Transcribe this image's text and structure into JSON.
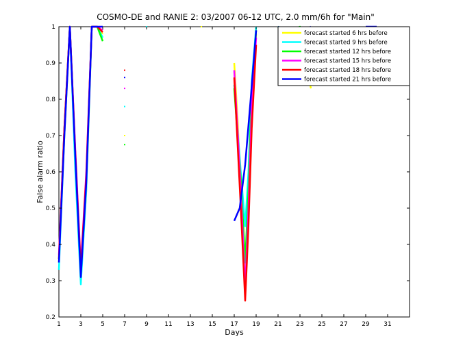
{
  "chart_data": {
    "type": "line",
    "title": "COSMO-DE and RANIE 2: 03/2007 06-12 UTC, 2.0 mm/6h for \"Main\"",
    "xlabel": "Days",
    "ylabel": "False alarm ratio",
    "xlim": [
      1,
      33
    ],
    "ylim": [
      0.2,
      1.0
    ],
    "x_ticks": [
      1,
      3,
      5,
      7,
      9,
      11,
      13,
      15,
      17,
      19,
      21,
      23,
      25,
      27,
      29,
      31
    ],
    "x_tick_labels": [
      "1",
      "3",
      "5",
      "7",
      "9",
      "11",
      "13",
      "15",
      "17",
      "19",
      "21",
      "23",
      "25",
      "27",
      "29",
      "31"
    ],
    "y_ticks": [
      0.2,
      0.3,
      0.4,
      0.5,
      0.6,
      0.7,
      0.8,
      0.9,
      1.0
    ],
    "y_tick_labels": [
      "0.2",
      "0.3",
      "0.4",
      "0.5",
      "0.6",
      "0.7",
      "0.8",
      "0.9",
      "1"
    ],
    "grid": false,
    "legend_position": "top-right",
    "series": [
      {
        "name": "forecast started 6 hrs before",
        "color": "#ffff00",
        "x": [
          1,
          1.5,
          2,
          2.5,
          3,
          3.5,
          4,
          4.5,
          5,
          null,
          7,
          null,
          14,
          null,
          17,
          17.3,
          17.6,
          18,
          18.3,
          18.6,
          19,
          null,
          21,
          22,
          23,
          23.5,
          24
        ],
        "y": [
          0.35,
          0.7,
          1.0,
          0.65,
          0.3,
          0.55,
          1.0,
          1.0,
          0.98,
          null,
          0.7,
          null,
          1.0,
          null,
          0.9,
          0.75,
          0.55,
          0.3,
          0.55,
          0.8,
          0.98,
          null,
          1.0,
          0.98,
          0.97,
          0.9,
          0.83
        ]
      },
      {
        "name": "forecast started 9 hrs before",
        "color": "#00ffff",
        "x": [
          1,
          1.5,
          2,
          2.5,
          3,
          3.5,
          4,
          4.5,
          5,
          null,
          7,
          null,
          9,
          null,
          17,
          17.3,
          17.6,
          18,
          18.3,
          18.6,
          19,
          null,
          21,
          22,
          23,
          23.5,
          24
        ],
        "y": [
          0.33,
          0.7,
          1.0,
          0.6,
          0.29,
          0.55,
          1.0,
          1.0,
          0.97,
          null,
          0.78,
          null,
          1.0,
          null,
          0.84,
          0.72,
          0.6,
          0.45,
          0.6,
          0.85,
          1.0,
          null,
          1.0,
          0.96,
          0.965,
          0.92,
          0.86
        ]
      },
      {
        "name": "forecast started 12 hrs before",
        "color": "#00ff00",
        "x": [
          1,
          1.5,
          2,
          2.5,
          3,
          3.5,
          4,
          4.5,
          5,
          null,
          7,
          null,
          17,
          17.3,
          17.6,
          18,
          18.3,
          18.6,
          19,
          null,
          21,
          22,
          23,
          23.5,
          24
        ],
        "y": [
          0.36,
          0.72,
          1.0,
          0.65,
          0.32,
          0.58,
          1.0,
          1.0,
          0.96,
          null,
          0.675,
          null,
          0.83,
          0.7,
          0.58,
          0.35,
          0.55,
          0.82,
          0.99,
          null,
          1.0,
          0.99,
          1.0,
          0.95,
          0.9
        ]
      },
      {
        "name": "forecast started 15 hrs before",
        "color": "#ff00ff",
        "x": [
          1,
          1.5,
          2,
          2.5,
          3,
          3.5,
          4,
          4.5,
          5,
          null,
          7,
          null,
          17,
          17.3,
          17.6,
          18,
          18.3,
          18.6,
          19
        ],
        "y": [
          0.37,
          0.72,
          1.0,
          0.66,
          0.34,
          0.6,
          1.0,
          1.0,
          0.99,
          null,
          0.83,
          null,
          0.88,
          0.72,
          0.55,
          0.28,
          0.5,
          0.78,
          0.97
        ]
      },
      {
        "name": "forecast started 18 hrs before",
        "color": "#ff0000",
        "x": [
          1,
          1.5,
          2,
          2.5,
          3,
          3.5,
          4,
          4.5,
          5,
          null,
          7,
          null,
          17,
          17.3,
          17.6,
          18,
          18.3,
          18.6,
          19
        ],
        "y": [
          0.36,
          0.72,
          1.0,
          0.65,
          0.33,
          0.59,
          1.0,
          1.0,
          0.985,
          null,
          0.88,
          null,
          0.86,
          0.68,
          0.5,
          0.245,
          0.45,
          0.72,
          0.95
        ]
      },
      {
        "name": "forecast started 21 hrs before",
        "color": "#0000ff",
        "x": [
          1,
          1.5,
          2,
          2.5,
          3,
          3.5,
          4,
          4.5,
          5,
          null,
          7,
          null,
          17,
          17.5,
          18,
          18.5,
          19,
          null,
          21,
          22,
          23,
          24,
          null,
          29,
          30
        ],
        "y": [
          0.35,
          0.7,
          1.0,
          0.64,
          0.31,
          0.57,
          1.0,
          1.0,
          1.0,
          null,
          0.86,
          null,
          0.465,
          0.5,
          0.62,
          0.8,
          0.99,
          null,
          1.0,
          0.985,
          0.985,
          1.0,
          null,
          1.0,
          1.0
        ]
      }
    ]
  }
}
